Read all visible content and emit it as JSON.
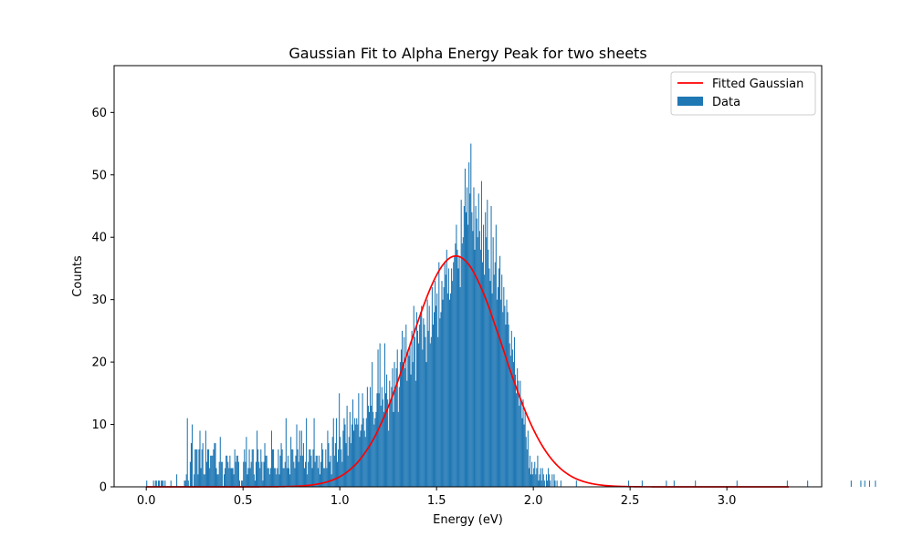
{
  "chart_data": {
    "type": "bar",
    "title": "Gaussian Fit to Alpha Energy Peak for two sheets",
    "xlabel": "Energy (eV)",
    "ylabel": "Counts",
    "xlim": [
      -0.166,
      3.49
    ],
    "ylim": [
      0,
      67.5
    ],
    "xticks": [
      0.0,
      0.5,
      1.0,
      1.5,
      2.0,
      2.5,
      3.0
    ],
    "xtick_labels": [
      "0.0",
      "0.5",
      "1.0",
      "1.5",
      "2.0",
      "2.5",
      "3.0"
    ],
    "yticks": [
      0,
      10,
      20,
      30,
      40,
      50,
      60
    ],
    "ytick_labels": [
      "0",
      "10",
      "20",
      "30",
      "40",
      "50",
      "60"
    ],
    "grid": false,
    "legend_position": "top-right",
    "colors": {
      "data": "#1f77b4",
      "fit": "#ff0000"
    },
    "series": [
      {
        "name": "Data",
        "kind": "histogram",
        "bin_start": 0.0,
        "bin_width": 0.005,
        "bin_count": 663,
        "values": [
          1,
          0,
          0,
          0,
          0,
          0,
          0,
          1,
          0,
          1,
          1,
          0,
          1,
          1,
          0,
          1,
          1,
          1,
          0,
          1,
          0,
          0,
          0,
          0,
          0,
          1,
          0,
          0,
          0,
          0,
          0,
          2,
          0,
          0,
          0,
          0,
          0,
          0,
          0,
          1,
          1,
          2,
          11,
          1,
          0,
          4,
          7,
          10,
          0,
          2,
          6,
          6,
          6,
          2,
          6,
          9,
          3,
          6,
          7,
          2,
          2,
          9,
          4,
          6,
          6,
          3,
          5,
          5,
          5,
          6,
          7,
          7,
          3,
          2,
          2,
          4,
          8,
          4,
          4,
          0,
          2,
          3,
          5,
          5,
          4,
          3,
          5,
          3,
          3,
          3,
          2,
          6,
          4,
          5,
          5,
          4,
          1,
          0,
          1,
          1,
          4,
          6,
          4,
          8,
          2,
          3,
          6,
          3,
          4,
          6,
          6,
          2,
          1,
          4,
          9,
          6,
          4,
          3,
          6,
          4,
          1,
          4,
          7,
          5,
          5,
          3,
          3,
          2,
          3,
          9,
          6,
          6,
          3,
          3,
          2,
          3,
          6,
          2,
          5,
          7,
          6,
          3,
          3,
          4,
          11,
          3,
          5,
          3,
          2,
          8,
          6,
          6,
          4,
          3,
          5,
          10,
          6,
          4,
          9,
          5,
          9,
          5,
          7,
          3,
          4,
          11,
          2,
          4,
          6,
          6,
          5,
          3,
          6,
          11,
          4,
          5,
          5,
          3,
          5,
          2,
          4,
          7,
          6,
          3,
          3,
          6,
          3,
          9,
          7,
          4,
          5,
          2,
          8,
          11,
          5,
          7,
          11,
          4,
          6,
          15,
          8,
          6,
          4,
          9,
          11,
          10,
          7,
          13,
          5,
          8,
          12,
          7,
          10,
          14,
          9,
          11,
          10,
          11,
          10,
          15,
          8,
          9,
          10,
          15,
          11,
          9,
          8,
          11,
          16,
          13,
          12,
          16,
          13,
          20,
          12,
          10,
          11,
          12,
          15,
          22,
          15,
          23,
          13,
          16,
          14,
          12,
          23,
          15,
          18,
          14,
          9,
          17,
          14,
          16,
          19,
          12,
          20,
          16,
          19,
          22,
          12,
          16,
          20,
          22,
          25,
          20,
          24,
          19,
          26,
          17,
          22,
          21,
          23,
          18,
          25,
          20,
          29,
          24,
          17,
          28,
          25,
          23,
          26,
          28,
          29,
          22,
          27,
          26,
          24,
          20,
          30,
          25,
          29,
          23,
          24,
          32,
          26,
          28,
          33,
          29,
          31,
          24,
          36,
          27,
          28,
          33,
          30,
          32,
          36,
          34,
          38,
          31,
          35,
          30,
          31,
          35,
          33,
          36,
          37,
          39,
          42,
          38,
          35,
          37,
          32,
          46,
          39,
          40,
          45,
          51,
          44,
          48,
          42,
          52,
          47,
          55,
          44,
          41,
          48,
          38,
          45,
          43,
          40,
          47,
          41,
          38,
          49,
          36,
          42,
          34,
          44,
          40,
          46,
          38,
          35,
          33,
          45,
          31,
          40,
          34,
          36,
          42,
          30,
          32,
          35,
          37,
          30,
          34,
          28,
          32,
          29,
          26,
          30,
          28,
          26,
          23,
          21,
          25,
          22,
          20,
          24,
          18,
          15,
          19,
          17,
          13,
          17,
          14,
          11,
          14,
          10,
          12,
          8,
          6,
          9,
          3,
          5,
          2,
          4,
          2,
          3,
          4,
          2,
          3,
          5,
          1,
          2,
          3,
          1,
          3,
          2,
          1,
          0,
          2,
          1,
          3,
          2,
          1,
          0,
          2,
          0,
          2,
          1,
          0,
          1,
          0,
          0,
          0,
          1,
          0,
          0,
          0,
          0,
          0,
          0,
          0,
          0,
          0,
          0,
          0,
          0,
          0,
          0,
          0,
          1,
          0,
          0,
          0,
          0,
          0,
          0,
          0,
          0,
          0,
          0,
          0,
          0,
          0,
          0,
          0,
          0,
          0,
          0,
          0,
          0,
          0,
          0,
          0,
          0,
          0,
          0,
          0,
          0,
          0,
          0,
          0,
          0,
          0,
          0,
          0,
          0,
          0,
          0,
          0,
          0,
          0,
          0,
          0,
          0,
          0,
          0,
          0,
          0,
          0,
          0,
          0,
          0,
          0,
          1,
          0,
          0,
          0,
          0,
          0,
          0,
          0,
          0,
          0,
          0,
          0,
          0,
          0,
          1,
          0,
          0,
          0,
          0,
          0,
          0,
          0,
          0,
          0,
          0,
          0,
          0,
          0,
          0,
          0,
          0,
          0,
          0,
          0,
          0,
          0,
          0,
          0,
          0,
          1,
          0,
          0,
          0,
          0,
          0,
          0,
          0,
          1,
          0,
          0,
          0,
          0,
          0,
          0,
          0,
          0,
          0,
          0,
          0,
          0,
          0,
          0,
          0,
          0,
          0,
          0,
          0,
          0,
          0,
          1,
          0,
          0,
          0,
          0,
          0,
          0,
          0,
          0,
          0,
          0,
          0,
          0,
          0,
          0,
          0,
          0,
          0,
          0,
          0,
          0,
          0,
          0,
          0,
          0,
          0,
          0,
          0,
          0,
          0,
          0,
          0,
          0,
          0,
          0,
          0,
          0,
          0,
          0,
          0,
          0,
          0,
          0,
          1,
          0,
          0,
          0,
          0,
          0,
          0,
          0,
          0,
          0,
          0,
          0,
          0,
          0,
          0,
          0,
          0,
          0,
          0,
          0,
          0,
          0,
          0,
          0,
          0,
          0,
          0,
          0,
          0,
          0,
          0,
          0,
          0,
          0,
          0,
          0,
          0,
          0,
          0,
          0,
          0,
          0,
          0,
          0,
          0,
          0,
          0,
          0,
          0,
          0,
          0,
          0,
          1,
          0,
          0,
          0,
          0,
          0,
          0,
          0,
          0,
          0,
          0,
          0,
          0,
          0,
          0,
          0,
          0,
          0,
          0,
          0,
          0,
          1,
          0,
          0,
          0,
          0,
          0,
          0,
          0,
          0,
          0,
          0,
          0,
          0,
          0,
          0,
          0,
          0,
          0,
          0,
          0,
          0,
          0,
          0,
          0,
          0,
          0,
          0,
          0,
          0,
          0,
          0,
          0,
          0,
          0,
          0,
          0,
          0,
          0,
          0,
          0,
          0,
          0,
          0,
          0,
          0,
          1,
          0,
          0,
          0,
          0,
          0,
          0,
          0,
          0,
          0,
          1,
          0,
          0,
          0,
          1,
          0,
          0,
          0,
          0,
          1,
          0,
          0,
          0,
          0,
          0,
          1,
          0
        ]
      },
      {
        "name": "Fitted Gaussian",
        "kind": "line",
        "amplitude": 37.0,
        "mean": 1.6,
        "sigma": 0.24,
        "x_range": [
          0.0,
          3.32
        ]
      }
    ]
  }
}
